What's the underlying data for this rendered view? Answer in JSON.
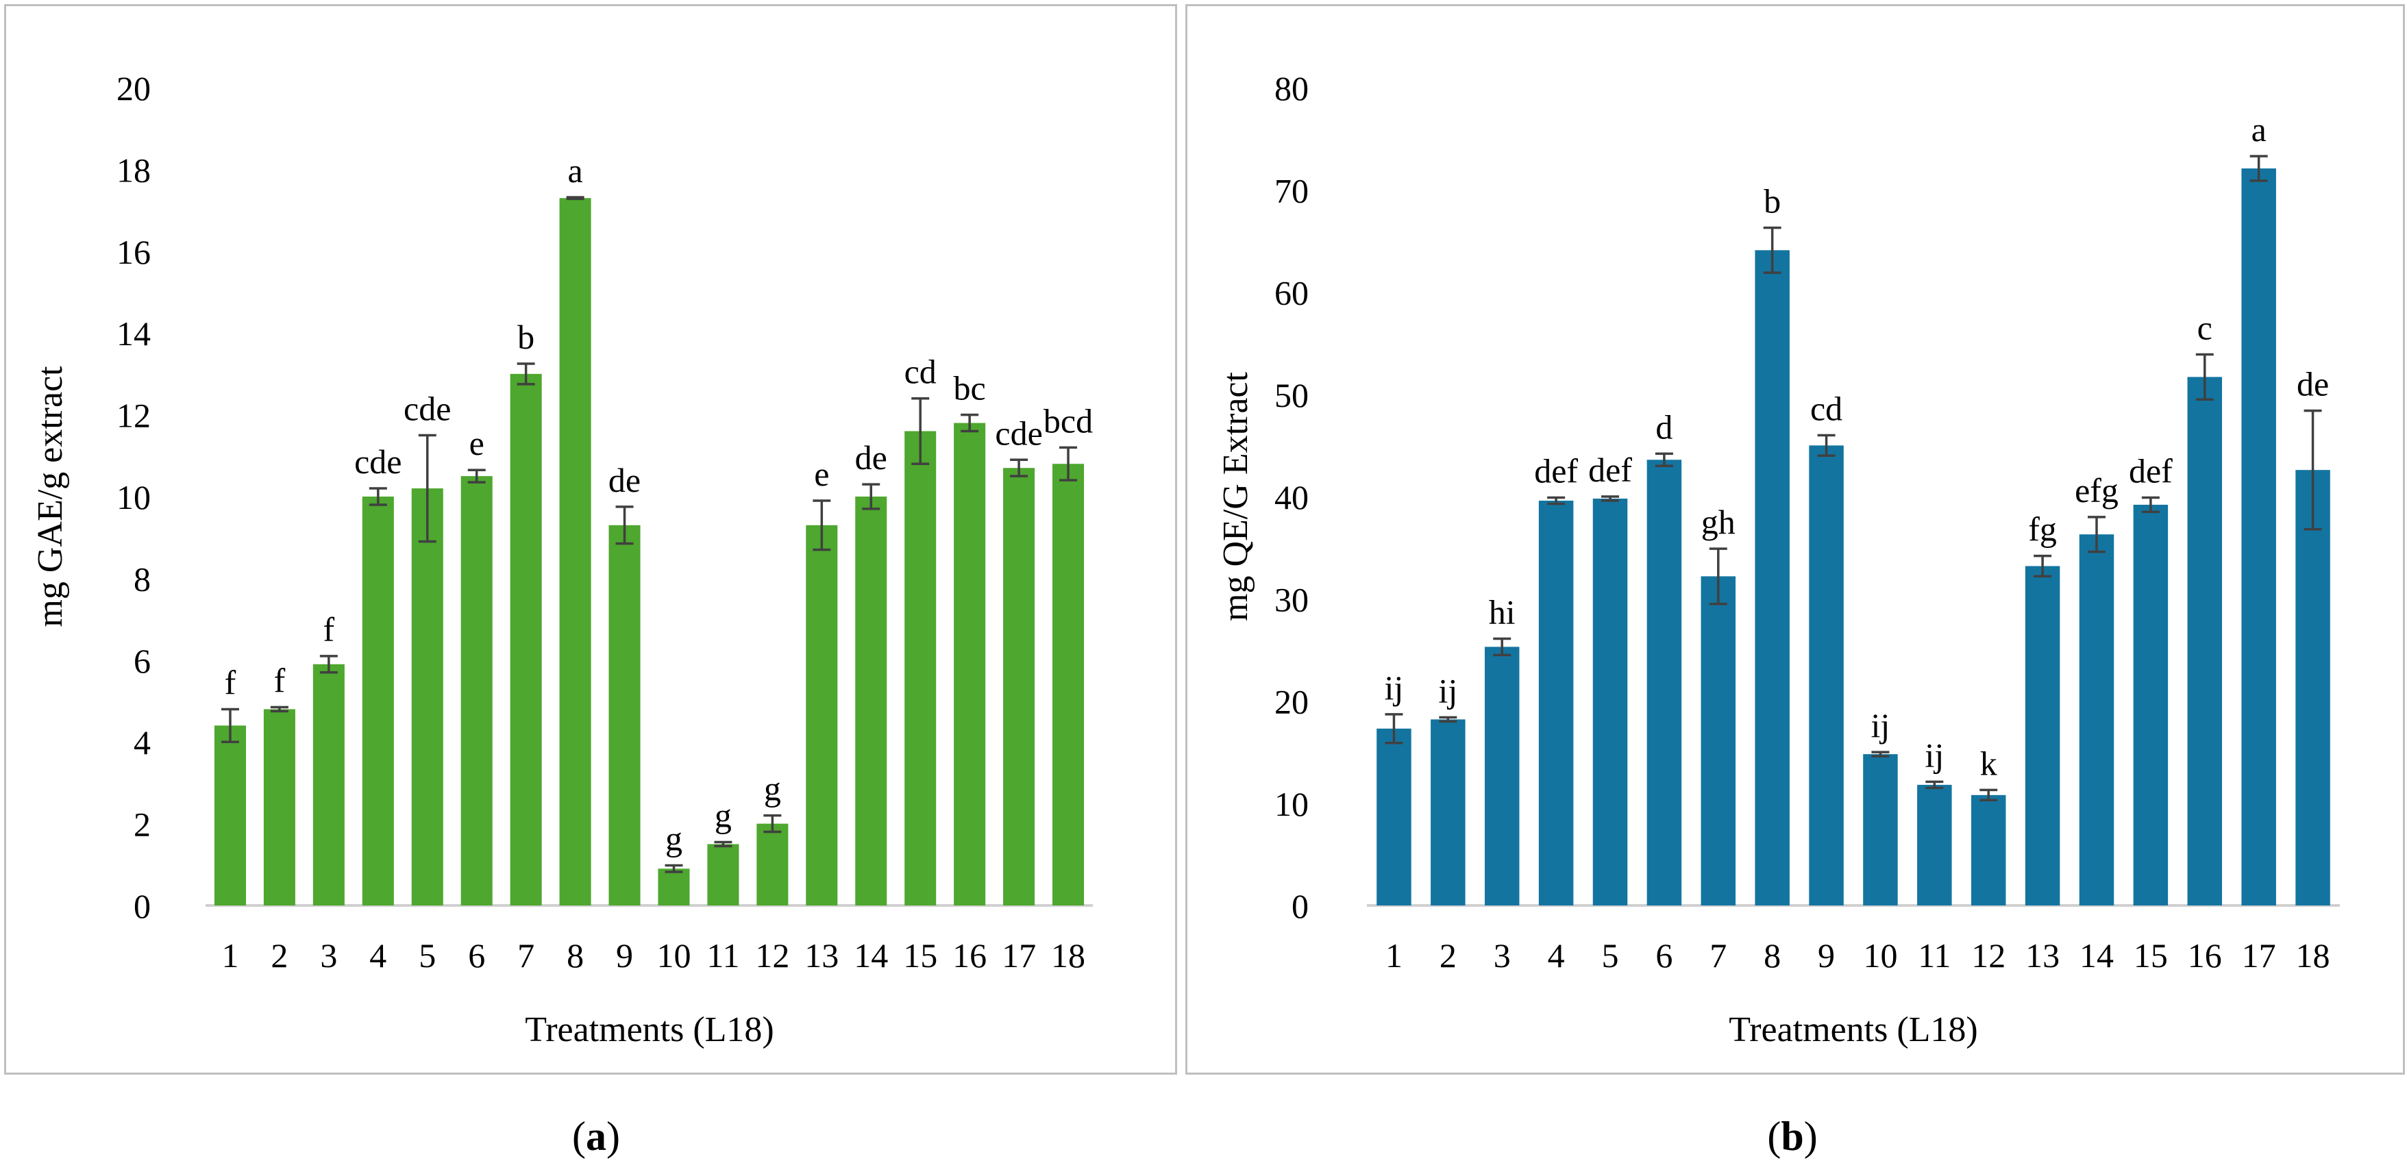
{
  "chart_data": [
    {
      "type": "bar",
      "panel_label": "a",
      "xlabel": "Treatments (L18)",
      "ylabel": "mg GAE/g extract",
      "ylim": [
        0,
        20
      ],
      "yticks": [
        0,
        2,
        4,
        6,
        8,
        10,
        12,
        14,
        16,
        18,
        20
      ],
      "color": "#4ea72e",
      "categories": [
        "1",
        "2",
        "3",
        "4",
        "5",
        "6",
        "7",
        "8",
        "9",
        "10",
        "11",
        "12",
        "13",
        "14",
        "15",
        "16",
        "17",
        "18"
      ],
      "values": [
        4.4,
        4.8,
        5.9,
        10.0,
        10.2,
        10.5,
        13.0,
        17.3,
        9.3,
        0.9,
        1.5,
        2.0,
        9.3,
        10.0,
        11.6,
        11.8,
        10.7,
        10.8
      ],
      "errors": [
        0.4,
        0.05,
        0.2,
        0.2,
        1.3,
        0.15,
        0.25,
        0.02,
        0.45,
        0.08,
        0.05,
        0.2,
        0.6,
        0.3,
        0.8,
        0.2,
        0.2,
        0.4
      ],
      "labels": [
        "f",
        "f",
        "f",
        "cde",
        "cde",
        "e",
        "b",
        "a",
        "de",
        "g",
        "g",
        "g",
        "e",
        "de",
        "cd",
        "bc",
        "cde",
        "bcd"
      ]
    },
    {
      "type": "bar",
      "panel_label": "b",
      "xlabel": "Treatments (L18)",
      "ylabel": "mg QE/G Extract",
      "ylim": [
        0,
        80
      ],
      "yticks": [
        0,
        10,
        20,
        30,
        40,
        50,
        60,
        70,
        80
      ],
      "color": "#1374a0",
      "categories": [
        "1",
        "2",
        "3",
        "4",
        "5",
        "6",
        "7",
        "8",
        "9",
        "10",
        "11",
        "12",
        "13",
        "14",
        "15",
        "16",
        "17",
        "18"
      ],
      "values": [
        17.3,
        18.2,
        25.3,
        39.6,
        39.8,
        43.6,
        32.2,
        64.1,
        45.0,
        14.8,
        11.8,
        10.8,
        33.2,
        36.3,
        39.2,
        51.7,
        72.1,
        42.6
      ],
      "errors": [
        1.4,
        0.2,
        0.8,
        0.3,
        0.2,
        0.6,
        2.7,
        2.2,
        1.0,
        0.2,
        0.3,
        0.5,
        1.0,
        1.7,
        0.7,
        2.2,
        1.2,
        5.8
      ],
      "labels": [
        "ij",
        "ij",
        "hi",
        "def",
        "def",
        "d",
        "gh",
        "b",
        "cd",
        "ij",
        "ij",
        "k",
        "fg",
        "efg",
        "def",
        "c",
        "a",
        "de"
      ]
    }
  ]
}
